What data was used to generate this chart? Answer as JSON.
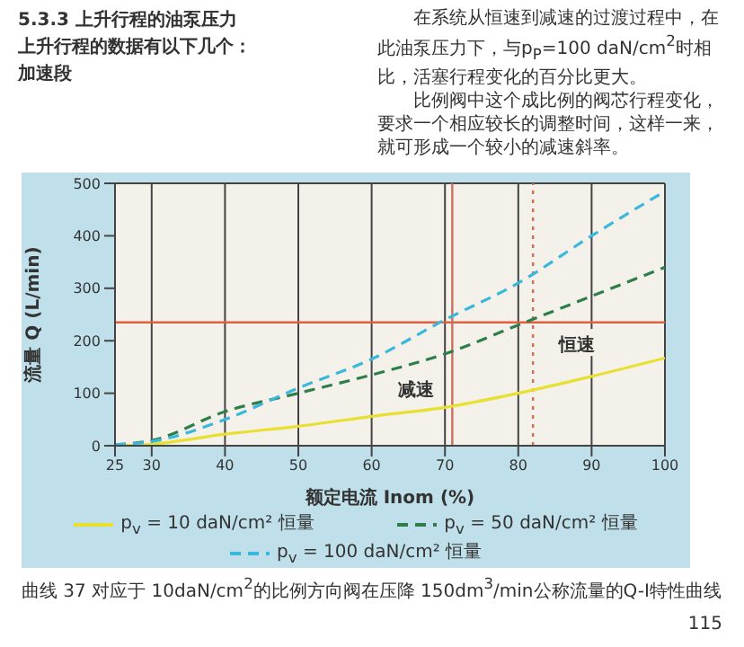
{
  "chart_data": {
    "type": "line",
    "xlabel": "额定电流 Inom (%)",
    "ylabel": "流量 Q (L/min)",
    "x": [
      25,
      30,
      40,
      50,
      60,
      70,
      80,
      90,
      100
    ],
    "series": [
      {
        "name": "p$_{v}$ = 10 daN/cm² 恒量",
        "color": "#e8e030",
        "line_style": "solid",
        "values": [
          0,
          3,
          22,
          37,
          56,
          73,
          100,
          132,
          167
        ]
      },
      {
        "name": "p$_{v}$ = 50 daN/cm² 恒量",
        "color": "#2e7d4a",
        "line_style": "dashed",
        "values": [
          2,
          10,
          65,
          100,
          135,
          175,
          230,
          285,
          340
        ]
      },
      {
        "name": "p$_{v}$ = 100 daN/cm² 恒量",
        "color": "#3ab8dc",
        "line_style": "dashed",
        "values": [
          2,
          8,
          50,
          110,
          165,
          240,
          310,
          400,
          485
        ]
      }
    ],
    "xlim": [
      25,
      100
    ],
    "xticks": [
      25,
      30,
      40,
      50,
      60,
      70,
      80,
      90,
      100
    ],
    "ylim": [
      0,
      500
    ],
    "yticks": [
      0,
      100,
      200,
      300,
      400,
      500
    ],
    "grid": true,
    "legend": "bottom",
    "marker": "none",
    "ref_lines": [
      {
        "axis": "y",
        "value": 235,
        "color": "#e06040",
        "line_style": "solid"
      },
      {
        "axis": "x",
        "value": 71,
        "color": "#c87060",
        "line_style": "solid"
      },
      {
        "axis": "x",
        "value": 82,
        "color": "#c87060",
        "line_style": "dotted"
      }
    ],
    "annotations": [
      "5.3.3 上升行程的油泵压力",
      "上升行程的数据有以下几个：",
      "加速段",
      "在系统从恒速到减速的过渡过程中，在此油泵压力下，与p$_{P}$=100 daN/cm$^{2}$时相比，活塞行程变化的百分比更大。",
      "比例阀中这个成比例的阀芯行程变化，要求一个相应较长的调整时间，这样一来，就可形成一个较小的减速斜率。",
      "曲线 37 对应于 10daN/cm$^{2}$的比例方向阀在压降 150dm$^{3}$/min公称流量的Q-I特性曲线",
      "115",
      {
        "text": "减速",
        "x": 66,
        "y": 110
      },
      {
        "text": "恒速",
        "x": 88,
        "y": 195
      }
    ]
  }
}
